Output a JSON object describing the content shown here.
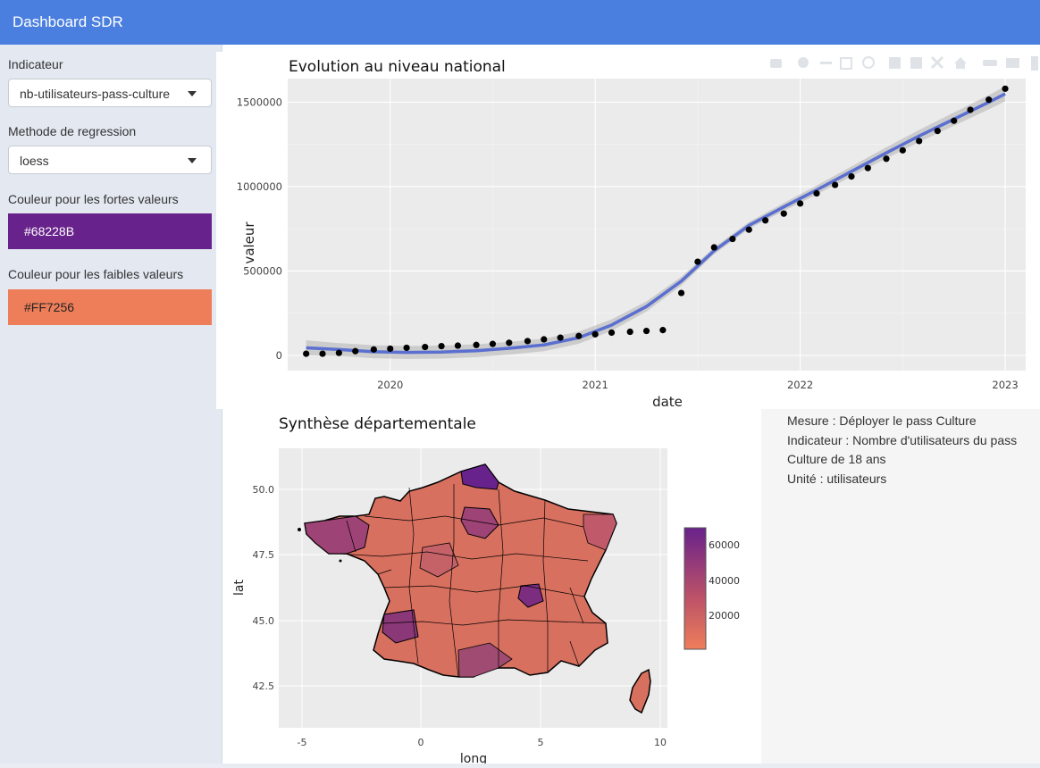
{
  "header": {
    "title": "Dashboard SDR"
  },
  "sidebar": {
    "indicator_label": "Indicateur",
    "indicator_value": "nb-utilisateurs-pass-culture",
    "regression_label": "Methode de regression",
    "regression_value": "loess",
    "high_color_label": "Couleur pour les fortes valeurs",
    "high_color_value": "#68228B",
    "low_color_label": "Couleur pour les faibles valeurs",
    "low_color_value": "#FF7256"
  },
  "info": {
    "mesure": "Mesure : Déployer le pass Culture",
    "indicateur_line1": "Indicateur : Nombre d'utilisateurs du pass",
    "indicateur_line2": "Culture de 18 ans",
    "unite": "Unité : utilisateurs"
  },
  "map": {
    "title": "Synthèse départementale",
    "xlabel": "long",
    "ylabel": "lat",
    "x_ticks": [
      "-5",
      "0",
      "5",
      "10"
    ],
    "y_ticks": [
      "50.0",
      "47.5",
      "45.0",
      "42.5"
    ],
    "legend_ticks": [
      "60000",
      "40000",
      "20000"
    ]
  },
  "chart_data": {
    "type": "scatter",
    "title": "Evolution au niveau national",
    "xlabel": "date",
    "ylabel": "valeur",
    "x_ticks": [
      "2020",
      "2021",
      "2022",
      "2023"
    ],
    "y_ticks": [
      "0",
      "500000",
      "1000000",
      "1500000"
    ],
    "ylim": [
      -90000,
      1640000
    ],
    "x": [
      2019.59,
      2019.67,
      2019.75,
      2019.83,
      2019.92,
      2020.0,
      2020.08,
      2020.17,
      2020.25,
      2020.33,
      2020.42,
      2020.5,
      2020.58,
      2020.67,
      2020.75,
      2020.83,
      2020.92,
      2021.0,
      2021.08,
      2021.17,
      2021.25,
      2021.33,
      2021.42,
      2021.5,
      2021.58,
      2021.67,
      2021.75,
      2021.83,
      2021.92,
      2022.0,
      2022.08,
      2022.17,
      2022.25,
      2022.33,
      2022.42,
      2022.5,
      2022.58,
      2022.67,
      2022.75,
      2022.83,
      2022.92,
      2023.0
    ],
    "values": [
      10000,
      10000,
      15000,
      25000,
      35000,
      40000,
      45000,
      50000,
      55000,
      58000,
      62000,
      68000,
      75000,
      85000,
      95000,
      105000,
      115000,
      125000,
      135000,
      140000,
      145000,
      150000,
      370000,
      555000,
      640000,
      690000,
      745000,
      800000,
      840000,
      900000,
      960000,
      1010000,
      1060000,
      1110000,
      1165000,
      1215000,
      1270000,
      1330000,
      1390000,
      1455000,
      1515000,
      1580000
    ],
    "smooth": {
      "name": "loess",
      "x": [
        2019.59,
        2019.75,
        2019.92,
        2020.08,
        2020.25,
        2020.42,
        2020.58,
        2020.75,
        2020.92,
        2021.08,
        2021.25,
        2021.42,
        2021.58,
        2021.75,
        2021.92,
        2022.08,
        2022.25,
        2022.42,
        2022.58,
        2022.75,
        2022.92,
        2023.0
      ],
      "values": [
        45000,
        35000,
        22000,
        18000,
        20000,
        28000,
        42000,
        62000,
        105000,
        180000,
        290000,
        440000,
        620000,
        770000,
        880000,
        980000,
        1090000,
        1200000,
        1300000,
        1400000,
        1500000,
        1550000
      ]
    }
  }
}
